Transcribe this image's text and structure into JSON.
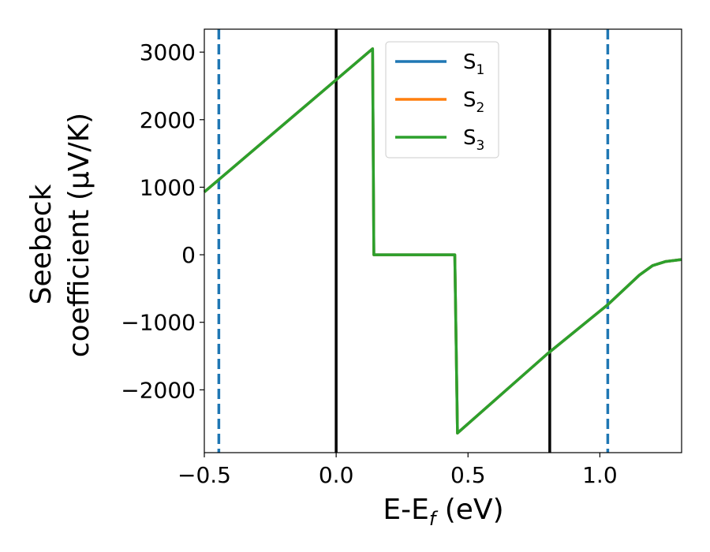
{
  "chart_data": {
    "type": "line",
    "xlabel": "E-E",
    "xlabel_sub": "f",
    "xlabel_unit": " (eV)",
    "ylabel_line1": "Seebeck",
    "ylabel_line2": "coefficient  (μV/K)",
    "xlim": [
      -0.5,
      1.31
    ],
    "ylim": [
      -2930,
      3340
    ],
    "x_ticks": [
      -0.5,
      0.0,
      0.5,
      1.0
    ],
    "x_tick_labels": [
      "−0.5",
      "0.0",
      "0.5",
      "1.0"
    ],
    "y_ticks": [
      -2000,
      -1000,
      0,
      1000,
      2000,
      3000
    ],
    "y_tick_labels": [
      "−2000",
      "−1000",
      "0",
      "1000",
      "2000",
      "3000"
    ],
    "grid": false,
    "legend_position": "top-center",
    "series": [
      {
        "name": "S",
        "name_sub": "1",
        "color": "#1f77b4",
        "x": [
          -0.5,
          0.0,
          0.138,
          0.143,
          0.45,
          0.46,
          0.8,
          1.03,
          1.15,
          1.2,
          1.25,
          1.31
        ],
        "y": [
          930,
          2590,
          3050,
          0,
          0,
          -2640,
          -1470,
          -740,
          -300,
          -160,
          -100,
          -70
        ]
      },
      {
        "name": "S",
        "name_sub": "2",
        "color": "#ff7f0e",
        "x": [
          -0.5,
          0.0,
          0.138,
          0.143,
          0.45,
          0.46,
          0.8,
          1.03,
          1.15,
          1.2,
          1.25,
          1.31
        ],
        "y": [
          930,
          2590,
          3050,
          0,
          0,
          -2640,
          -1470,
          -740,
          -300,
          -160,
          -100,
          -70
        ]
      },
      {
        "name": "S",
        "name_sub": "3",
        "color": "#2ca02c",
        "x": [
          -0.5,
          0.0,
          0.138,
          0.143,
          0.45,
          0.46,
          0.8,
          1.03,
          1.15,
          1.2,
          1.25,
          1.31
        ],
        "y": [
          930,
          2590,
          3050,
          0,
          0,
          -2640,
          -1470,
          -740,
          -300,
          -160,
          -100,
          -70
        ]
      }
    ],
    "vertical_lines": [
      {
        "x": -0.445,
        "color": "#1f77b4",
        "style": "dashed"
      },
      {
        "x": 0.0,
        "color": "#000000",
        "style": "solid"
      },
      {
        "x": 0.81,
        "color": "#000000",
        "style": "solid"
      },
      {
        "x": 1.03,
        "color": "#1f77b4",
        "style": "dashed"
      }
    ]
  }
}
